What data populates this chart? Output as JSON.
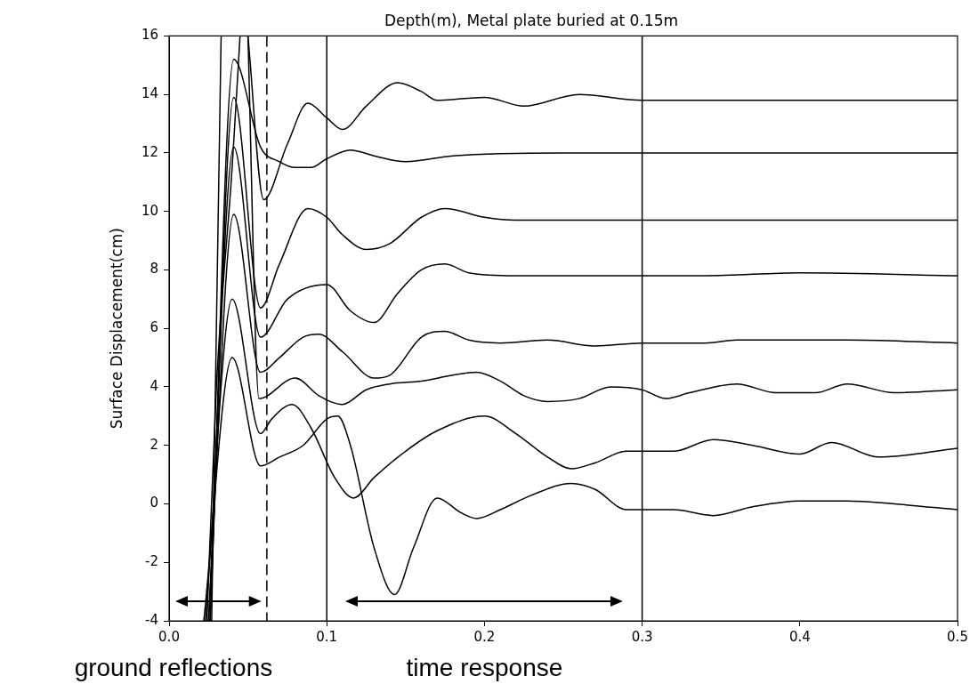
{
  "chart_data": {
    "type": "line",
    "title": "Depth(m), Metal plate buried at 0.15m",
    "ylabel": "Surface Displacement(cm)",
    "xlim": [
      0,
      0.5
    ],
    "xticks": [
      {
        "value": 0,
        "label": "0.0"
      },
      0.1,
      0.2,
      0.3,
      0.4,
      0.5
    ],
    "ylim": [
      -4,
      16
    ],
    "yticks": [
      -4,
      -2,
      0,
      2,
      4,
      6,
      8,
      10,
      12,
      14,
      16
    ],
    "grid": false,
    "legend": false,
    "marker": "none",
    "line_style": "solid",
    "series": [
      {
        "color": "#000000",
        "x": [
          0.022,
          0.04,
          0.058,
          0.07,
          0.085,
          0.1,
          0.107,
          0.115,
          0.13,
          0.143,
          0.155,
          0.17,
          0.185,
          0.195,
          0.21,
          0.23,
          0.255,
          0.27,
          0.29,
          0.32,
          0.345,
          0.37,
          0.4,
          0.43,
          0.46,
          0.5
        ],
        "values": [
          -4,
          5.0,
          1.3,
          1.6,
          2.0,
          2.9,
          3.0,
          2.0,
          -1.5,
          -3.1,
          -1.5,
          0.2,
          -0.3,
          -0.5,
          -0.2,
          0.3,
          0.7,
          0.5,
          -0.2,
          -0.2,
          -0.4,
          -0.1,
          0.1,
          0.1,
          0.0,
          -0.2
        ]
      },
      {
        "color": "#000000",
        "x": [
          0.023,
          0.04,
          0.058,
          0.065,
          0.078,
          0.09,
          0.105,
          0.117,
          0.13,
          0.15,
          0.17,
          0.2,
          0.22,
          0.24,
          0.255,
          0.27,
          0.29,
          0.32,
          0.345,
          0.37,
          0.4,
          0.42,
          0.45,
          0.5
        ],
        "values": [
          -4,
          7.0,
          2.4,
          2.9,
          3.4,
          2.6,
          0.9,
          0.2,
          0.9,
          1.8,
          2.5,
          3.0,
          2.4,
          1.6,
          1.2,
          1.4,
          1.8,
          1.8,
          2.2,
          2.0,
          1.7,
          2.1,
          1.6,
          1.9
        ]
      },
      {
        "color": "#000000",
        "x": [
          0.024,
          0.03,
          0.04,
          0.045,
          0.048,
          0.05,
          0.057,
          0.08,
          0.095,
          0.11,
          0.125,
          0.14,
          0.16,
          0.18,
          0.195,
          0.21,
          0.225,
          0.24,
          0.26,
          0.28,
          0.3,
          0.315,
          0.33,
          0.36,
          0.385,
          0.41,
          0.43,
          0.46,
          0.5
        ],
        "values": [
          -4,
          4,
          11.5,
          16,
          null,
          16,
          3.6,
          4.3,
          3.7,
          3.4,
          3.9,
          4.1,
          4.2,
          4.4,
          4.5,
          4.2,
          3.7,
          3.5,
          3.6,
          4.0,
          3.9,
          3.6,
          3.8,
          4.1,
          3.8,
          3.8,
          4.1,
          3.8,
          3.9
        ]
      },
      {
        "color": "#000000",
        "x": [
          0.025,
          0.041,
          0.058,
          0.07,
          0.085,
          0.095,
          0.11,
          0.13,
          0.14,
          0.16,
          0.175,
          0.19,
          0.21,
          0.24,
          0.27,
          0.3,
          0.34,
          0.36,
          0.43,
          0.5
        ],
        "values": [
          -4,
          9.9,
          4.5,
          5.0,
          5.7,
          5.8,
          5.2,
          4.3,
          4.4,
          5.7,
          5.9,
          5.6,
          5.5,
          5.6,
          5.4,
          5.5,
          5.5,
          5.6,
          5.6,
          5.5
        ]
      },
      {
        "color": "#000000",
        "x": [
          0.025,
          0.041,
          0.058,
          0.075,
          0.1,
          0.115,
          0.13,
          0.145,
          0.16,
          0.175,
          0.19,
          0.22,
          0.3,
          0.34,
          0.4,
          0.5
        ],
        "values": [
          -4,
          12.2,
          5.7,
          7.0,
          7.5,
          6.6,
          6.2,
          7.2,
          8.0,
          8.2,
          7.9,
          7.8,
          7.8,
          7.8,
          7.9,
          7.8
        ]
      },
      {
        "color": "#000000",
        "x": [
          0.026,
          0.041,
          0.058,
          0.07,
          0.088,
          0.1,
          0.11,
          0.125,
          0.14,
          0.16,
          0.175,
          0.2,
          0.22,
          0.3,
          0.5
        ],
        "values": [
          -4,
          13.9,
          6.7,
          8.2,
          10.1,
          9.8,
          9.2,
          8.7,
          8.9,
          9.8,
          10.1,
          9.8,
          9.7,
          9.7,
          9.7
        ]
      },
      {
        "color": "#000000",
        "x": [
          0.026,
          0.041,
          0.058,
          0.07,
          0.08,
          0.09,
          0.1,
          0.115,
          0.13,
          0.15,
          0.18,
          0.25,
          0.35,
          0.5
        ],
        "values": [
          -4,
          15.2,
          12.2,
          11.7,
          11.5,
          11.5,
          11.8,
          12.1,
          11.9,
          11.7,
          11.9,
          12.0,
          12.0,
          12.0
        ]
      },
      {
        "color": "#000000",
        "x": [
          0.027,
          0.033,
          0.04,
          0.05,
          0.06,
          0.075,
          0.088,
          0.1,
          0.11,
          0.125,
          0.145,
          0.16,
          0.17,
          0.2,
          0.225,
          0.26,
          0.3,
          0.4,
          0.5
        ],
        "values": [
          -4,
          16,
          null,
          16,
          10.4,
          12.3,
          13.7,
          13.2,
          12.8,
          13.6,
          14.4,
          14.1,
          13.8,
          13.9,
          13.6,
          14.0,
          13.8,
          13.8,
          13.8
        ]
      }
    ],
    "ref_lines": [
      {
        "axis": "x",
        "value": 0.062,
        "line_style": "dashed"
      },
      {
        "axis": "x",
        "value": 0.1
      },
      {
        "axis": "x",
        "value": 0.3
      }
    ],
    "annotations": [
      "ground reflections",
      "time response"
    ]
  }
}
